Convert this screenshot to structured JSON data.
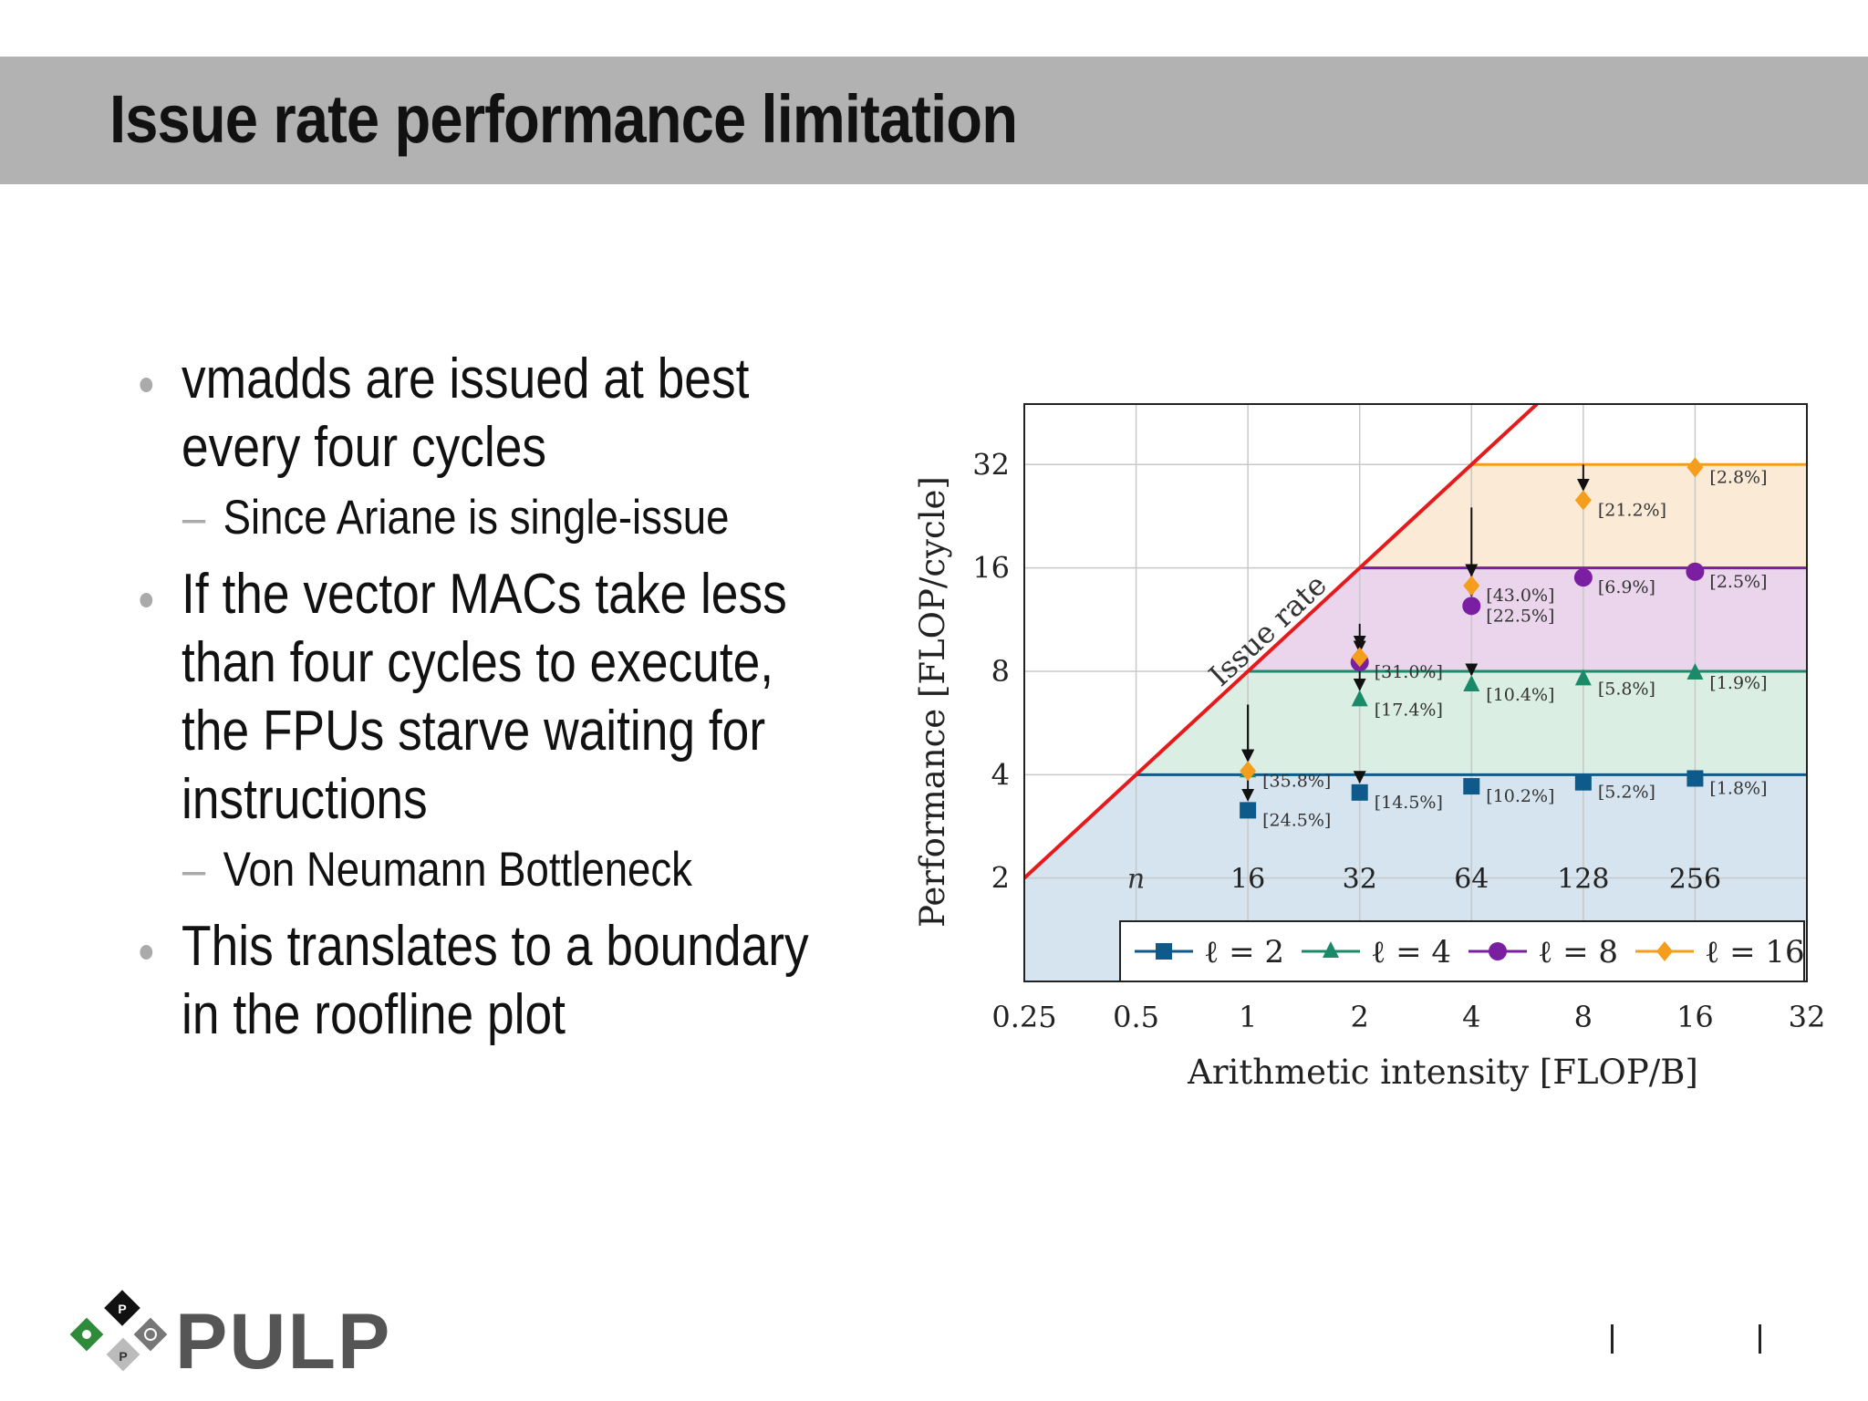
{
  "slide": {
    "title": "Issue rate performance limitation",
    "bullets": [
      {
        "lines": [
          "vmadds are issued at best",
          "every four cycles"
        ],
        "sub": {
          "lines": [
            "Since Ariane is single-issue"
          ]
        }
      },
      {
        "lines": [
          "If the vector MACs take less",
          "than four cycles to execute,",
          "the FPUs starve waiting for",
          "instructions"
        ],
        "sub": {
          "lines": [
            "Von Neumann Bottleneck"
          ]
        }
      },
      {
        "lines": [
          "This translates to a boundary",
          "in the roofline plot"
        ]
      }
    ],
    "logo_text": "PULP",
    "logo_letters": [
      "P",
      "P"
    ]
  },
  "chart_data": {
    "type": "line",
    "xlabel": "Arithmetic intensity [FLOP/B]",
    "ylabel": "Performance [FLOP/cycle]",
    "xscale": "log2",
    "yscale": "log2",
    "xlim": [
      0.25,
      32
    ],
    "ylim": [
      1,
      48
    ],
    "x_ticks": [
      0.25,
      0.5,
      1,
      2,
      4,
      8,
      16,
      32
    ],
    "x_tick_labels": [
      "0.25",
      "0.5",
      "1",
      "2",
      "4",
      "8",
      "16",
      "32"
    ],
    "y_ticks": [
      2,
      4,
      8,
      16,
      32
    ],
    "y_tick_labels": [
      "2",
      "4",
      "8",
      "16",
      "32"
    ],
    "grid": true,
    "legend_position": "bottom",
    "issue_rate_label": "Issue rate",
    "issue_rate_line": {
      "color": "#e41a1c",
      "slope_flop_per_byte": 8
    },
    "n_axis": {
      "label": "n",
      "values": [
        16,
        32,
        64,
        128,
        256
      ],
      "x_positions": [
        1,
        2,
        4,
        8,
        16
      ]
    },
    "series": [
      {
        "name": "ℓ = 2",
        "color": "#0e5a8a",
        "fill": "#d5e4ef",
        "marker": "square",
        "roof": 4,
        "points": [
          {
            "x": 1,
            "y": 3.15,
            "label": "[24.5%]",
            "from": 4
          },
          {
            "x": 2,
            "y": 3.55,
            "label": "[14.5%]",
            "from": 4
          },
          {
            "x": 4,
            "y": 3.7,
            "label": "[10.2%]",
            "from": 4
          },
          {
            "x": 8,
            "y": 3.8,
            "label": "[5.2%]",
            "from": 4
          },
          {
            "x": 16,
            "y": 3.9,
            "label": "[1.8%]",
            "from": 4
          }
        ]
      },
      {
        "name": "ℓ = 4",
        "color": "#1a8a68",
        "fill": "#daeee3",
        "marker": "triangle",
        "roof": 8,
        "points": [
          {
            "x": 1,
            "y": 4.1,
            "label": "[35.8%]",
            "from": 6.4
          },
          {
            "x": 2,
            "y": 6.6,
            "label": "[17.4%]",
            "from": 8
          },
          {
            "x": 4,
            "y": 7.3,
            "label": "[10.4%]",
            "from": 8
          },
          {
            "x": 8,
            "y": 7.6,
            "label": "[5.8%]",
            "from": 8
          },
          {
            "x": 16,
            "y": 7.9,
            "label": "[1.9%]",
            "from": 8
          }
        ]
      },
      {
        "name": "ℓ = 8",
        "color": "#7b1fa2",
        "fill": "#ead5ec",
        "marker": "circle",
        "roof": 16,
        "points": [
          {
            "x": 2,
            "y": 8.5,
            "label": "[31.0%]",
            "from": 10
          },
          {
            "x": 4,
            "y": 12.4,
            "label": "[22.5%]",
            "from": 16
          },
          {
            "x": 8,
            "y": 15.0,
            "label": "[6.9%]",
            "from": 16
          },
          {
            "x": 16,
            "y": 15.6,
            "label": "[2.5%]",
            "from": 16
          }
        ]
      },
      {
        "name": "ℓ = 16",
        "color": "#f59d1c",
        "fill": "#fbebd6",
        "marker": "diamond",
        "roof": 32,
        "points": [
          {
            "x": 1,
            "y": 4.1,
            "label": "",
            "from": 6.4
          },
          {
            "x": 2,
            "y": 8.8,
            "label": "",
            "from": 11
          },
          {
            "x": 4,
            "y": 14.2,
            "label": "[43.0%]",
            "from": 24
          },
          {
            "x": 8,
            "y": 25.2,
            "label": "[21.2%]",
            "from": 32
          },
          {
            "x": 16,
            "y": 31.4,
            "label": "[2.8%]",
            "from": 32
          }
        ]
      }
    ]
  }
}
